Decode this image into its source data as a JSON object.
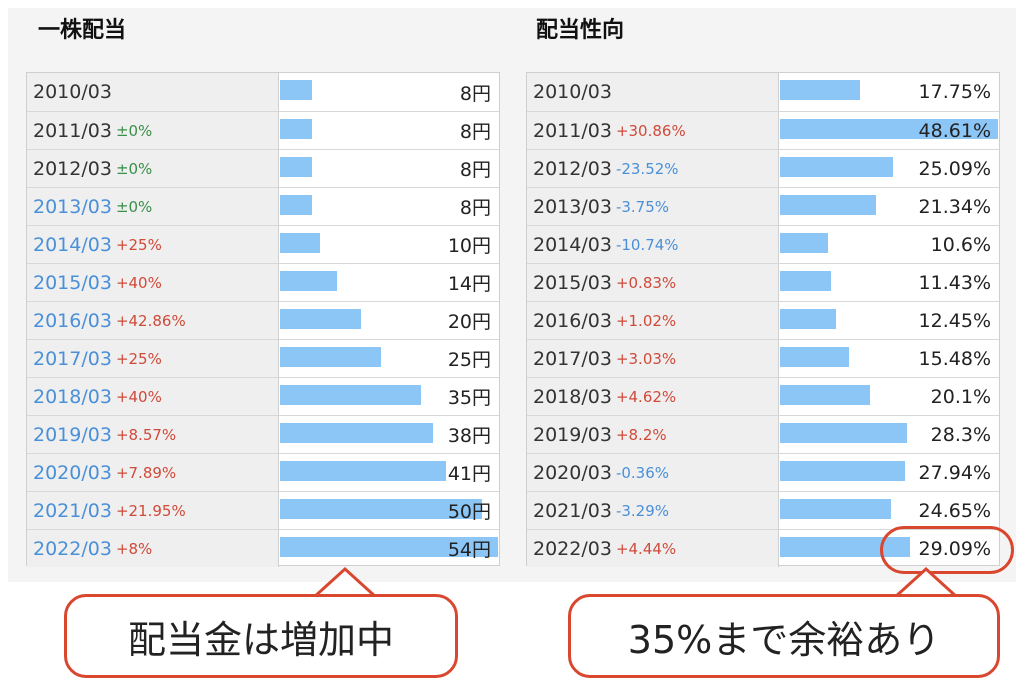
{
  "chart_data": [
    {
      "type": "bar",
      "title": "一株配当",
      "unit": "円",
      "xlim": [
        0,
        54
      ],
      "rows": [
        {
          "year": "2010/03",
          "change": "",
          "value": 8,
          "value_label": "8円",
          "link": false
        },
        {
          "year": "2011/03",
          "change": "±0%",
          "value": 8,
          "value_label": "8円",
          "link": false
        },
        {
          "year": "2012/03",
          "change": "±0%",
          "value": 8,
          "value_label": "8円",
          "link": false
        },
        {
          "year": "2013/03",
          "change": "±0%",
          "value": 8,
          "value_label": "8円",
          "link": true
        },
        {
          "year": "2014/03",
          "change": "+25%",
          "value": 10,
          "value_label": "10円",
          "link": true
        },
        {
          "year": "2015/03",
          "change": "+40%",
          "value": 14,
          "value_label": "14円",
          "link": true
        },
        {
          "year": "2016/03",
          "change": "+42.86%",
          "value": 20,
          "value_label": "20円",
          "link": true
        },
        {
          "year": "2017/03",
          "change": "+25%",
          "value": 25,
          "value_label": "25円",
          "link": true
        },
        {
          "year": "2018/03",
          "change": "+40%",
          "value": 35,
          "value_label": "35円",
          "link": true
        },
        {
          "year": "2019/03",
          "change": "+8.57%",
          "value": 38,
          "value_label": "38円",
          "link": true
        },
        {
          "year": "2020/03",
          "change": "+7.89%",
          "value": 41,
          "value_label": "41円",
          "link": true
        },
        {
          "year": "2021/03",
          "change": "+21.95%",
          "value": 50,
          "value_label": "50円",
          "link": true
        },
        {
          "year": "2022/03",
          "change": "+8%",
          "value": 54,
          "value_label": "54円",
          "link": true
        }
      ]
    },
    {
      "type": "bar",
      "title": "配当性向",
      "unit": "%",
      "xlim": [
        0,
        48.61
      ],
      "rows": [
        {
          "year": "2010/03",
          "change": "",
          "value": 17.75,
          "value_label": "17.75%",
          "link": false
        },
        {
          "year": "2011/03",
          "change": "+30.86%",
          "value": 48.61,
          "value_label": "48.61%",
          "link": false
        },
        {
          "year": "2012/03",
          "change": "-23.52%",
          "value": 25.09,
          "value_label": "25.09%",
          "link": false
        },
        {
          "year": "2013/03",
          "change": "-3.75%",
          "value": 21.34,
          "value_label": "21.34%",
          "link": false
        },
        {
          "year": "2014/03",
          "change": "-10.74%",
          "value": 10.6,
          "value_label": "10.6%",
          "link": false
        },
        {
          "year": "2015/03",
          "change": "+0.83%",
          "value": 11.43,
          "value_label": "11.43%",
          "link": false
        },
        {
          "year": "2016/03",
          "change": "+1.02%",
          "value": 12.45,
          "value_label": "12.45%",
          "link": false
        },
        {
          "year": "2017/03",
          "change": "+3.03%",
          "value": 15.48,
          "value_label": "15.48%",
          "link": false
        },
        {
          "year": "2018/03",
          "change": "+4.62%",
          "value": 20.1,
          "value_label": "20.1%",
          "link": false
        },
        {
          "year": "2019/03",
          "change": "+8.2%",
          "value": 28.3,
          "value_label": "28.3%",
          "link": false
        },
        {
          "year": "2020/03",
          "change": "-0.36%",
          "value": 27.94,
          "value_label": "27.94%",
          "link": false
        },
        {
          "year": "2021/03",
          "change": "-3.29%",
          "value": 24.65,
          "value_label": "24.65%",
          "link": false
        },
        {
          "year": "2022/03",
          "change": "+4.44%",
          "value": 29.09,
          "value_label": "29.09%",
          "link": false
        }
      ]
    }
  ],
  "annotations": {
    "left": "配当金は増加中",
    "right": "35%まで余裕あり"
  },
  "colors": {
    "bar": "#8cc6f7",
    "positive": "#d04a3a",
    "negative": "#4a90d9",
    "zero": "#3a8f4a",
    "link": "#4a90d9",
    "callout": "#d9472f"
  }
}
